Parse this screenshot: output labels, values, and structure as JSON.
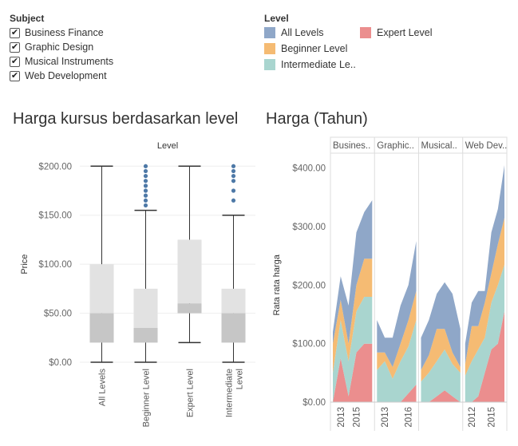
{
  "subject_legend": {
    "title": "Subject",
    "items": [
      "Business Finance",
      "Graphic Design",
      "Musical Instruments",
      "Web Development"
    ],
    "check_glyph": "✔"
  },
  "level_legend": {
    "title": "Level",
    "items": [
      {
        "label": "All Levels",
        "color": "#8fa7c8"
      },
      {
        "label": "Beginner Level",
        "color": "#f5bb73"
      },
      {
        "label": "Intermediate Le..",
        "color": "#a9d5cf"
      },
      {
        "label": "Expert Level",
        "color": "#eb8e8e"
      }
    ]
  },
  "chart_data": [
    {
      "type": "box",
      "title": "Harga kursus berdasarkan level",
      "header": "Level",
      "ylabel": "Price",
      "ylim": [
        0,
        210
      ],
      "yticks": [
        0,
        50,
        100,
        150,
        200
      ],
      "ytick_labels": [
        "$0.00",
        "$50.00",
        "$100.00",
        "$150.00",
        "$200.00"
      ],
      "categories": [
        "All Levels",
        "Beginner Level",
        "Expert Level",
        "Intermediate Level"
      ],
      "category_labels": [
        [
          "All Levels"
        ],
        [
          "Beginner Level"
        ],
        [
          "Expert Level"
        ],
        [
          "Intermediate",
          "Level"
        ]
      ],
      "boxes": [
        {
          "whisker_low": 0,
          "q1": 20,
          "median": 50,
          "q3": 100,
          "whisker_high": 200,
          "outliers": []
        },
        {
          "whisker_low": 0,
          "q1": 20,
          "median": 35,
          "q3": 75,
          "whisker_high": 155,
          "outliers": [
            160,
            165,
            170,
            175,
            180,
            185,
            190,
            195,
            200
          ]
        },
        {
          "whisker_low": 20,
          "q1": 50,
          "median": 60,
          "q3": 125,
          "whisker_high": 200,
          "outliers": []
        },
        {
          "whisker_low": 0,
          "q1": 20,
          "median": 50,
          "q3": 75,
          "whisker_high": 150,
          "outliers": [
            165,
            175,
            185,
            190,
            195,
            200
          ]
        }
      ],
      "box_upper_color": "#e2e2e2",
      "box_lower_color": "#c6c6c6",
      "outlier_color": "#4e79a7"
    },
    {
      "type": "area",
      "title": "Harga (Tahun)",
      "ylabel": "Rata rata harga",
      "ylim": [
        0,
        420
      ],
      "yticks": [
        0,
        100,
        200,
        300,
        400
      ],
      "ytick_labels": [
        "$0.00",
        "$100.00",
        "$200.00",
        "$300.00",
        "$400.00"
      ],
      "stacking": "stacked",
      "series_order": [
        "Expert Level",
        "Intermediate Le..",
        "Beginner Level",
        "All Levels"
      ],
      "series_colors": [
        "#eb8e8e",
        "#a9d5cf",
        "#f5bb73",
        "#8fa7c8"
      ],
      "panels": [
        {
          "header": "Busines..",
          "years": [
            2012,
            2013,
            2014,
            2015,
            2016,
            2017
          ],
          "tick_labels": [
            "2013",
            "2015"
          ],
          "tick_years": [
            2013,
            2015
          ],
          "series": [
            {
              "name": "Expert Level",
              "values": [
                0,
                75,
                10,
                85,
                100,
                100
              ]
            },
            {
              "name": "Intermediate Le..",
              "values": [
                50,
                65,
                60,
                70,
                80,
                80
              ]
            },
            {
              "name": "Beginner Level",
              "values": [
                50,
                35,
                30,
                45,
                65,
                65
              ]
            },
            {
              "name": "All Levels",
              "values": [
                20,
                40,
                65,
                90,
                80,
                100
              ]
            }
          ]
        },
        {
          "header": "Graphic..",
          "years": [
            2012,
            2013,
            2014,
            2015,
            2016,
            2017
          ],
          "tick_labels": [
            "2013",
            "2016"
          ],
          "tick_years": [
            2013,
            2016
          ],
          "series": [
            {
              "name": "Expert Level",
              "values": [
                0,
                0,
                0,
                0,
                15,
                30
              ]
            },
            {
              "name": "Intermediate Le..",
              "values": [
                55,
                70,
                40,
                70,
                80,
                110
              ]
            },
            {
              "name": "Beginner Level",
              "values": [
                30,
                15,
                20,
                30,
                45,
                50
              ]
            },
            {
              "name": "All Levels",
              "values": [
                55,
                25,
                50,
                65,
                60,
                85
              ]
            }
          ]
        },
        {
          "header": "Musical..",
          "years": [
            2012,
            2013,
            2014,
            2015,
            2016,
            2017
          ],
          "tick_labels": [],
          "tick_years": [],
          "series": [
            {
              "name": "Expert Level",
              "values": [
                0,
                0,
                10,
                20,
                10,
                0
              ]
            },
            {
              "name": "Intermediate Le..",
              "values": [
                35,
                50,
                60,
                70,
                55,
                50
              ]
            },
            {
              "name": "Beginner Level",
              "values": [
                20,
                30,
                55,
                35,
                20,
                10
              ]
            },
            {
              "name": "All Levels",
              "values": [
                55,
                60,
                60,
                80,
                100,
                65
              ]
            }
          ]
        },
        {
          "header": "Web Dev..",
          "years": [
            2011,
            2012,
            2013,
            2014,
            2015,
            2016,
            2017
          ],
          "tick_labels": [
            "2012",
            "2015"
          ],
          "tick_years": [
            2012,
            2015
          ],
          "series": [
            {
              "name": "Expert Level",
              "values": [
                0,
                0,
                10,
                50,
                90,
                100,
                155
              ]
            },
            {
              "name": "Intermediate Le..",
              "values": [
                45,
                70,
                80,
                60,
                80,
                100,
                80
              ]
            },
            {
              "name": "Beginner Level",
              "values": [
                20,
                60,
                40,
                60,
                50,
                70,
                80
              ]
            },
            {
              "name": "All Levels",
              "values": [
                35,
                40,
                60,
                20,
                70,
                60,
                90
              ]
            }
          ]
        }
      ]
    }
  ]
}
